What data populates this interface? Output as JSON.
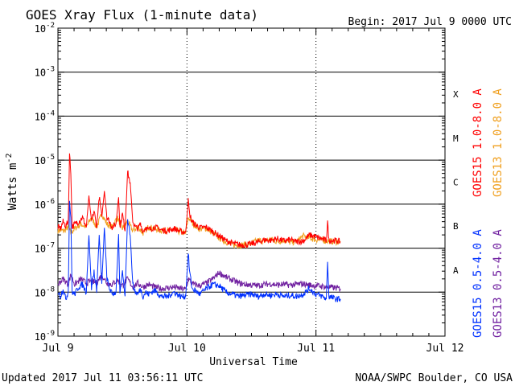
{
  "chart_data": {
    "type": "line",
    "title": "GOES Xray Flux (1-minute data)",
    "begin_label": "Begin:  2017 Jul 9 0000 UTC",
    "xlabel": "Universal Time",
    "ylabel_base": "Watts m",
    "ylabel_exp": "-2",
    "yscale": "log",
    "ylim": [
      1e-09,
      0.01
    ],
    "xlim": [
      0,
      3
    ],
    "x_unit": "days since 2017 Jul 9 00:00 UTC",
    "grid": true,
    "x_ticks": [
      {
        "value": 0,
        "label": "Jul 9"
      },
      {
        "value": 1,
        "label": "Jul 10"
      },
      {
        "value": 2,
        "label": "Jul 11"
      },
      {
        "value": 3,
        "label": "Jul 12"
      }
    ],
    "y_ticks": [
      {
        "exp": -9,
        "mant": "10",
        "sup": "-9"
      },
      {
        "exp": -8,
        "mant": "10",
        "sup": "-8"
      },
      {
        "exp": -7,
        "mant": "10",
        "sup": "-7"
      },
      {
        "exp": -6,
        "mant": "10",
        "sup": "-6"
      },
      {
        "exp": -5,
        "mant": "10",
        "sup": "-5"
      },
      {
        "exp": -4,
        "mant": "10",
        "sup": "-4"
      },
      {
        "exp": -3,
        "mant": "10",
        "sup": "-3"
      },
      {
        "exp": -2,
        "mant": "10",
        "sup": "-2"
      }
    ],
    "flare_classes": [
      {
        "label": "A",
        "exp": -7.5
      },
      {
        "label": "B",
        "exp": -6.5
      },
      {
        "label": "C",
        "exp": -5.5
      },
      {
        "label": "M",
        "exp": -4.5
      },
      {
        "label": "X",
        "exp": -3.5
      }
    ],
    "series": [
      {
        "name": "GOES13 1.0-8.0 A",
        "color": "#f0a020",
        "x": [
          0,
          0.05,
          0.08,
          0.1,
          0.13,
          0.18,
          0.22,
          0.26,
          0.3,
          0.34,
          0.38,
          0.42,
          0.46,
          0.5,
          0.54,
          0.58,
          0.62,
          0.66,
          0.7,
          0.75,
          0.8,
          0.85,
          0.9,
          0.95,
          0.99,
          1.01,
          1.05,
          1.1,
          1.15,
          1.2,
          1.25,
          1.3,
          1.35,
          1.4,
          1.45,
          1.5,
          1.55,
          1.6,
          1.65,
          1.7,
          1.75,
          1.8,
          1.85,
          1.9,
          1.95,
          2.0,
          2.05,
          2.1,
          2.15,
          2.19
        ],
        "y": [
          2.5e-07,
          2.5e-07,
          3e-07,
          2.2e-07,
          2.8e-07,
          3.5e-07,
          3e-07,
          5e-07,
          3e-07,
          6e-07,
          3.5e-07,
          3e-07,
          5e-07,
          2.8e-07,
          4e-07,
          2.5e-07,
          3e-07,
          2.2e-07,
          3e-07,
          2.8e-07,
          2.5e-07,
          2.5e-07,
          2.6e-07,
          2.3e-07,
          2.2e-07,
          5e-07,
          3.5e-07,
          2.7e-07,
          2.8e-07,
          2.2e-07,
          1.7e-07,
          1.4e-07,
          1.2e-07,
          1.15e-07,
          1.2e-07,
          1.3e-07,
          1.5e-07,
          1.45e-07,
          1.6e-07,
          1.4e-07,
          1.5e-07,
          1.35e-07,
          1.4e-07,
          1.9e-07,
          1.7e-07,
          1.55e-07,
          1.5e-07,
          1.45e-07,
          1.4e-07,
          1.35e-07
        ]
      },
      {
        "name": "GOES15 1.0-8.0 A",
        "color": "#ff0000",
        "x": [
          0,
          0.02,
          0.04,
          0.06,
          0.08,
          0.09,
          0.1,
          0.11,
          0.13,
          0.16,
          0.19,
          0.22,
          0.24,
          0.26,
          0.28,
          0.3,
          0.32,
          0.34,
          0.36,
          0.38,
          0.4,
          0.42,
          0.45,
          0.47,
          0.48,
          0.5,
          0.52,
          0.54,
          0.56,
          0.58,
          0.6,
          0.62,
          0.64,
          0.66,
          0.68,
          0.7,
          0.75,
          0.8,
          0.85,
          0.9,
          0.95,
          0.99,
          1.01,
          1.02,
          1.04,
          1.06,
          1.1,
          1.15,
          1.2,
          1.25,
          1.3,
          1.35,
          1.4,
          1.45,
          1.5,
          1.55,
          1.6,
          1.65,
          1.7,
          1.75,
          1.8,
          1.85,
          1.9,
          1.95,
          2.0,
          2.05,
          2.08,
          2.09,
          2.1,
          2.15,
          2.19
        ],
        "y": [
          3e-07,
          2.8e-07,
          4e-07,
          3.2e-07,
          4e-07,
          1.4e-05,
          5e-06,
          3e-07,
          3.5e-07,
          4e-07,
          5e-07,
          3e-07,
          1.5e-06,
          4e-07,
          7e-07,
          3e-07,
          1.5e-06,
          5e-07,
          2e-06,
          5e-07,
          4e-07,
          3e-07,
          3.5e-07,
          1.5e-06,
          3e-07,
          6e-07,
          2.5e-07,
          5.5e-06,
          3e-06,
          4e-07,
          3e-07,
          2.8e-07,
          3.5e-07,
          2.4e-07,
          3e-07,
          2.6e-07,
          3e-07,
          2.6e-07,
          2.5e-07,
          2.8e-07,
          2.4e-07,
          2.3e-07,
          1.2e-06,
          6e-07,
          4e-07,
          3.5e-07,
          2.9e-07,
          3e-07,
          2.4e-07,
          1.9e-07,
          1.5e-07,
          1.3e-07,
          1.2e-07,
          1.18e-07,
          1.25e-07,
          1.35e-07,
          1.55e-07,
          1.5e-07,
          1.65e-07,
          1.45e-07,
          1.55e-07,
          1.4e-07,
          1.45e-07,
          2e-07,
          1.8e-07,
          1.6e-07,
          1.5e-07,
          4e-07,
          1.5e-07,
          1.5e-07,
          1.4e-07
        ]
      },
      {
        "name": "GOES13 0.5-4.0 A",
        "color": "#7020a0",
        "x": [
          0,
          0.04,
          0.08,
          0.1,
          0.13,
          0.18,
          0.22,
          0.26,
          0.3,
          0.34,
          0.38,
          0.42,
          0.46,
          0.5,
          0.54,
          0.58,
          0.62,
          0.66,
          0.7,
          0.75,
          0.8,
          0.85,
          0.9,
          0.95,
          0.99,
          1.01,
          1.05,
          1.1,
          1.15,
          1.2,
          1.25,
          1.3,
          1.35,
          1.4,
          1.45,
          1.5,
          1.55,
          1.6,
          1.65,
          1.7,
          1.75,
          1.8,
          1.85,
          1.9,
          1.95,
          2.0,
          2.05,
          2.1,
          2.15,
          2.19
        ],
        "y": [
          1.5e-08,
          2e-08,
          1.5e-08,
          2.5e-08,
          1.5e-08,
          2e-08,
          1.6e-08,
          1.8e-08,
          1.6e-08,
          2.5e-08,
          1.6e-08,
          1.5e-08,
          1.9e-08,
          1.4e-08,
          2e-08,
          1.3e-08,
          1.6e-08,
          1.3e-08,
          1.5e-08,
          1.3e-08,
          1.2e-08,
          1.25e-08,
          1.3e-08,
          1.2e-08,
          1.15e-08,
          2e-08,
          1.5e-08,
          1.4e-08,
          1.6e-08,
          2e-08,
          2.8e-08,
          2.2e-08,
          1.9e-08,
          1.6e-08,
          1.5e-08,
          1.45e-08,
          1.4e-08,
          1.5e-08,
          1.55e-08,
          1.45e-08,
          1.5e-08,
          1.45e-08,
          1.5e-08,
          1.55e-08,
          1.45e-08,
          1.4e-08,
          1.35e-08,
          1.3e-08,
          1.25e-08,
          1.2e-08
        ]
      },
      {
        "name": "GOES15 0.5-4.0 A",
        "color": "#0030ff",
        "x": [
          0,
          0.02,
          0.04,
          0.06,
          0.08,
          0.09,
          0.1,
          0.11,
          0.13,
          0.16,
          0.19,
          0.22,
          0.24,
          0.26,
          0.28,
          0.3,
          0.32,
          0.34,
          0.36,
          0.38,
          0.4,
          0.42,
          0.45,
          0.47,
          0.48,
          0.5,
          0.52,
          0.54,
          0.56,
          0.58,
          0.6,
          0.62,
          0.64,
          0.66,
          0.68,
          0.7,
          0.75,
          0.8,
          0.85,
          0.9,
          0.95,
          0.99,
          1.01,
          1.02,
          1.04,
          1.06,
          1.1,
          1.15,
          1.2,
          1.25,
          1.3,
          1.35,
          1.4,
          1.45,
          1.5,
          1.55,
          1.6,
          1.65,
          1.7,
          1.75,
          1.8,
          1.85,
          1.9,
          1.95,
          2.0,
          2.05,
          2.08,
          2.09,
          2.1,
          2.15,
          2.19
        ],
        "y": [
          1e-08,
          8e-09,
          1.2e-08,
          7e-09,
          1e-08,
          1.2e-06,
          5e-07,
          1e-08,
          9e-09,
          1.3e-08,
          1.5e-08,
          1e-08,
          2e-07,
          1.2e-08,
          3e-08,
          1e-08,
          2e-07,
          1.5e-08,
          3e-07,
          2e-08,
          1.2e-08,
          9e-09,
          1e-08,
          2e-07,
          9e-09,
          3e-08,
          8e-09,
          5e-07,
          2e-07,
          1.5e-08,
          1e-08,
          9e-09,
          1.2e-08,
          8e-09,
          1e-08,
          9e-09,
          1.1e-08,
          8e-09,
          8e-09,
          1e-08,
          8e-09,
          8e-09,
          8e-08,
          3e-08,
          1.2e-08,
          1.1e-08,
          9e-09,
          1.2e-08,
          1.5e-08,
          1.4e-08,
          1e-08,
          9e-09,
          8e-09,
          8.5e-09,
          9e-09,
          8e-09,
          9e-09,
          8.5e-09,
          9e-09,
          8e-09,
          8.5e-09,
          8e-09,
          9e-09,
          1.2e-08,
          9e-09,
          8e-09,
          7e-09,
          5e-08,
          8e-09,
          7e-09,
          7e-09
        ]
      }
    ],
    "legend_placement": "right, vertical",
    "updated_label": "Updated 2017 Jul 11 03:56:11 UTC",
    "source_label": "NOAA/SWPC Boulder, CO USA"
  }
}
